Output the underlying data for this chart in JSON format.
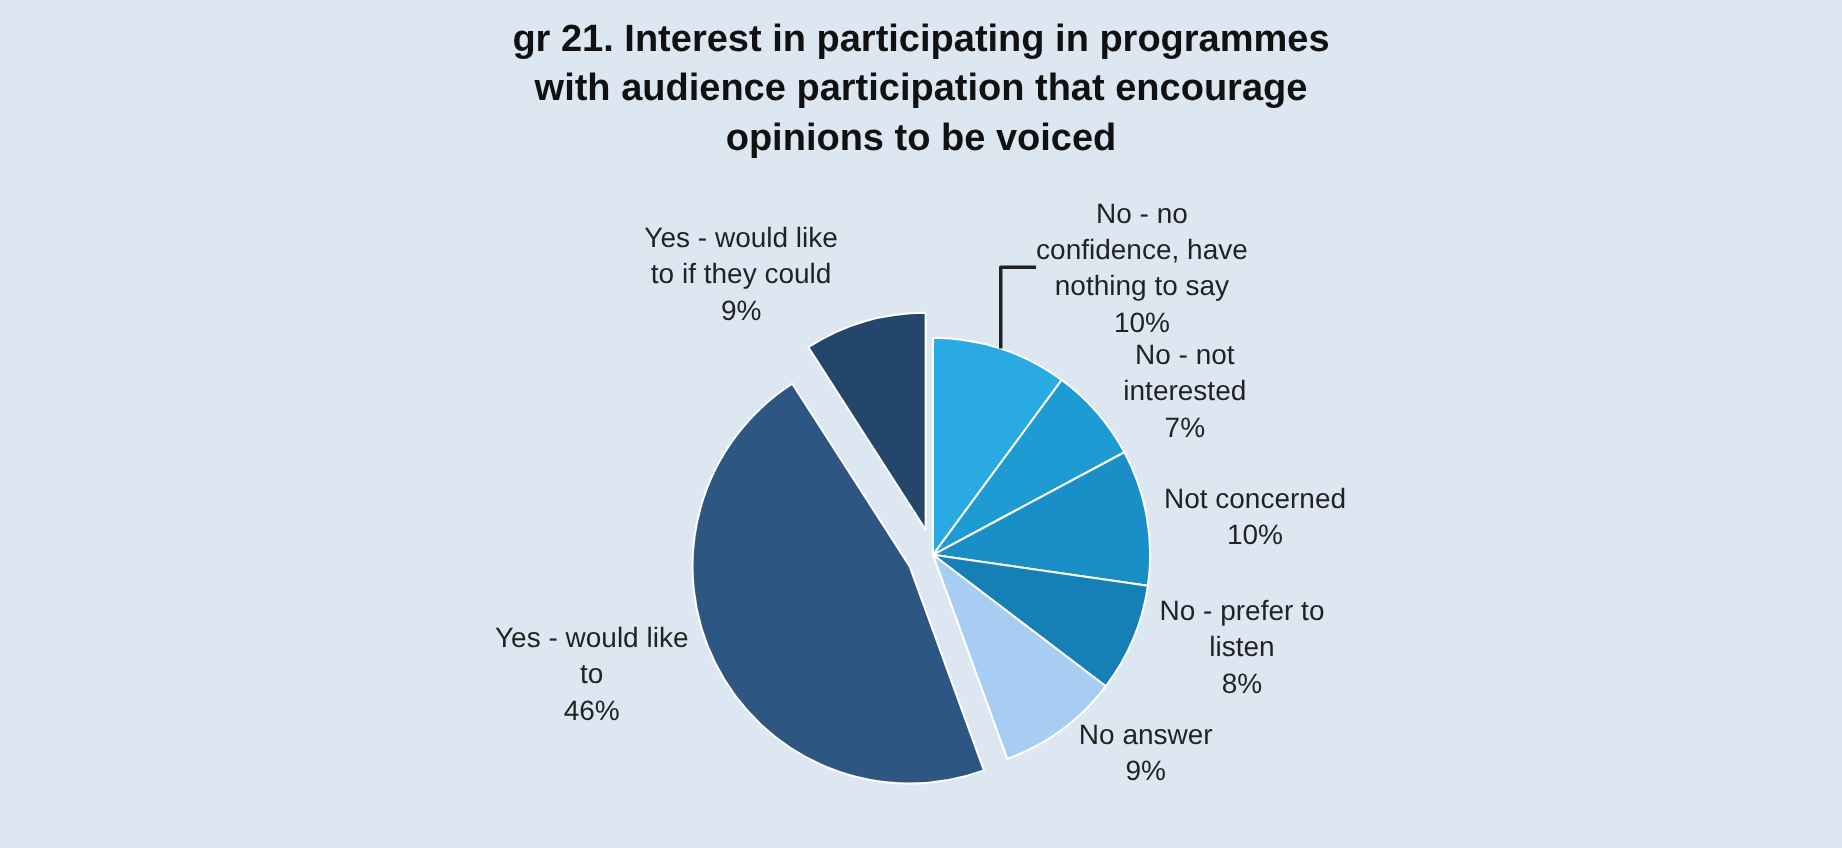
{
  "chart_data": {
    "type": "pie",
    "title": "gr 21. Interest in participating in programmes with audience participation that encourage opinions to be voiced",
    "categories": [
      "No - no confidence, have nothing to say",
      "No - not interested",
      "Not concerned",
      "No - prefer to listen",
      "No answer",
      "Yes - would like to",
      "Yes - would like to if they could"
    ],
    "values": [
      10,
      7,
      10,
      8,
      9,
      46,
      9
    ],
    "value_labels": [
      "10%",
      "7%",
      "10%",
      "8%",
      "9%",
      "46%",
      "9%"
    ],
    "colors": [
      "#2aaae2",
      "#1f9bd3",
      "#1a8ec6",
      "#1680b6",
      "#a8cdf3",
      "#2d5682",
      "#25466b"
    ],
    "legend": false
  }
}
